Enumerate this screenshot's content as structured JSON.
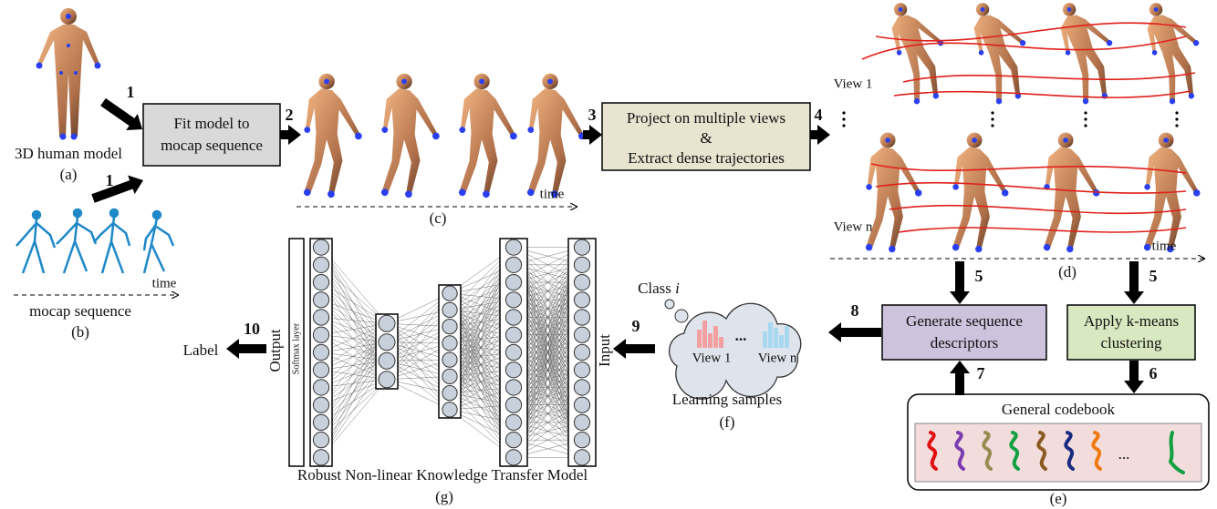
{
  "human_model": {
    "label": "3D human model",
    "caption": "(a)"
  },
  "mocap": {
    "label": "mocap sequence",
    "caption": "(b)",
    "axis": "time"
  },
  "fit_box": {
    "lines": [
      "Fit model to",
      "mocap sequence"
    ]
  },
  "fitted": {
    "caption": "(c)",
    "axis": "time"
  },
  "project_box": {
    "lines": [
      "Project on multiple views",
      "&",
      "Extract dense trajectories"
    ]
  },
  "views": {
    "first": "View 1",
    "last": "View n",
    "axis": "time",
    "caption": "(d)"
  },
  "descriptor_box": {
    "lines": [
      "Generate sequence",
      "descriptors"
    ]
  },
  "kmeans_box": {
    "lines": [
      "Apply k-means",
      "clustering"
    ]
  },
  "codebook": {
    "title": "General codebook",
    "ellipsis": "...",
    "caption": "(e)"
  },
  "samples": {
    "class_label": "Class",
    "class_var": "i",
    "view_first": "View 1",
    "view_last": "View n",
    "ellipsis": "...",
    "label": "Learning samples",
    "caption": "(f)"
  },
  "network": {
    "input": "Input",
    "output": "Output",
    "softmax": "Softmax layer",
    "result": "Label",
    "title": "Robust Non-linear Knowledge Transfer Model",
    "caption": "(g)"
  },
  "steps": [
    1,
    1,
    2,
    3,
    4,
    5,
    5,
    6,
    7,
    8,
    9,
    10
  ]
}
